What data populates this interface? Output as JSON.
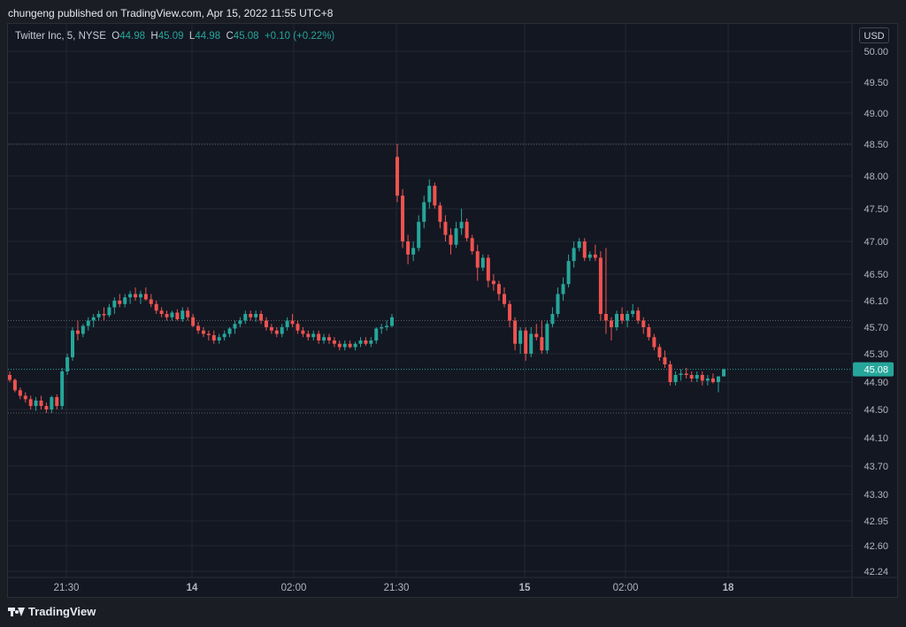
{
  "publish_line": "chungeng published on TradingView.com, Apr 15, 2022 11:55 UTC+8",
  "legend": {
    "symbol": "Twitter Inc, 5, NYSE",
    "o_label": "O",
    "o_value": "44.98",
    "h_label": "H",
    "h_value": "45.09",
    "l_label": "L",
    "l_value": "44.98",
    "c_label": "C",
    "c_value": "45.08",
    "change": "+0.10 (+0.22%)"
  },
  "currency_button": "USD",
  "footer_brand": "TradingView",
  "colors": {
    "up": "#26a69a",
    "down": "#ef5350",
    "background": "#131722",
    "grid": "#232733",
    "price_tag": "#26a69a"
  },
  "chart_data": {
    "type": "candlestick",
    "ylim": [
      42.24,
      50.0
    ],
    "y_ticks": [
      "50.00",
      "49.50",
      "49.00",
      "48.50",
      "48.00",
      "47.50",
      "47.00",
      "46.50",
      "46.10",
      "45.70",
      "45.30",
      "44.90",
      "44.50",
      "44.10",
      "43.70",
      "43.30",
      "42.95",
      "42.60",
      "42.24"
    ],
    "x_ticks": [
      "21:30",
      "14",
      "02:00",
      "21:30",
      "15",
      "02:00",
      "18"
    ],
    "last_price": "45.08",
    "dotted_levels": [
      48.5,
      45.8,
      45.08,
      44.45
    ],
    "candles": [
      [
        45.0,
        45.05,
        44.9,
        44.93
      ],
      [
        44.93,
        44.95,
        44.75,
        44.78
      ],
      [
        44.78,
        44.82,
        44.65,
        44.7
      ],
      [
        44.7,
        44.75,
        44.6,
        44.65
      ],
      [
        44.65,
        44.7,
        44.5,
        44.55
      ],
      [
        44.55,
        44.68,
        44.48,
        44.63
      ],
      [
        44.63,
        44.7,
        44.5,
        44.55
      ],
      [
        44.55,
        44.6,
        44.45,
        44.5
      ],
      [
        44.5,
        44.7,
        44.45,
        44.68
      ],
      [
        44.68,
        44.72,
        44.5,
        44.55
      ],
      [
        44.55,
        45.1,
        44.5,
        45.05
      ],
      [
        45.05,
        45.3,
        45.0,
        45.25
      ],
      [
        45.25,
        45.7,
        45.2,
        45.65
      ],
      [
        45.65,
        45.8,
        45.5,
        45.6
      ],
      [
        45.6,
        45.75,
        45.55,
        45.72
      ],
      [
        45.72,
        45.85,
        45.65,
        45.8
      ],
      [
        45.8,
        45.9,
        45.7,
        45.85
      ],
      [
        45.85,
        45.95,
        45.8,
        45.9
      ],
      [
        45.9,
        46.0,
        45.8,
        45.88
      ],
      [
        45.88,
        46.05,
        45.85,
        46.0
      ],
      [
        46.0,
        46.15,
        45.9,
        46.1
      ],
      [
        46.1,
        46.2,
        46.0,
        46.05
      ],
      [
        46.05,
        46.2,
        46.0,
        46.15
      ],
      [
        46.15,
        46.25,
        46.05,
        46.2
      ],
      [
        46.2,
        46.3,
        46.1,
        46.15
      ],
      [
        46.15,
        46.25,
        46.05,
        46.2
      ],
      [
        46.2,
        46.3,
        46.1,
        46.12
      ],
      [
        46.12,
        46.2,
        46.0,
        46.05
      ],
      [
        46.05,
        46.1,
        45.9,
        45.95
      ],
      [
        45.95,
        46.0,
        45.85,
        45.9
      ],
      [
        45.9,
        45.95,
        45.8,
        45.85
      ],
      [
        45.85,
        45.95,
        45.8,
        45.92
      ],
      [
        45.92,
        45.97,
        45.8,
        45.82
      ],
      [
        45.82,
        46.0,
        45.78,
        45.95
      ],
      [
        45.95,
        46.0,
        45.8,
        45.85
      ],
      [
        45.85,
        45.9,
        45.7,
        45.72
      ],
      [
        45.72,
        45.78,
        45.6,
        45.65
      ],
      [
        45.65,
        45.7,
        45.55,
        45.6
      ],
      [
        45.6,
        45.65,
        45.5,
        45.58
      ],
      [
        45.58,
        45.65,
        45.45,
        45.5
      ],
      [
        45.5,
        45.6,
        45.45,
        45.55
      ],
      [
        45.55,
        45.65,
        45.5,
        45.6
      ],
      [
        45.6,
        45.7,
        45.55,
        45.68
      ],
      [
        45.68,
        45.8,
        45.6,
        45.75
      ],
      [
        45.75,
        45.85,
        45.7,
        45.8
      ],
      [
        45.8,
        45.95,
        45.75,
        45.9
      ],
      [
        45.9,
        45.95,
        45.8,
        45.85
      ],
      [
        45.85,
        45.95,
        45.78,
        45.9
      ],
      [
        45.9,
        45.95,
        45.75,
        45.8
      ],
      [
        45.8,
        45.85,
        45.65,
        45.7
      ],
      [
        45.7,
        45.75,
        45.6,
        45.65
      ],
      [
        45.65,
        45.7,
        45.55,
        45.6
      ],
      [
        45.6,
        45.75,
        45.55,
        45.7
      ],
      [
        45.7,
        45.85,
        45.65,
        45.8
      ],
      [
        45.8,
        45.9,
        45.7,
        45.75
      ],
      [
        45.75,
        45.8,
        45.6,
        45.65
      ],
      [
        45.65,
        45.7,
        45.55,
        45.6
      ],
      [
        45.6,
        45.65,
        45.5,
        45.55
      ],
      [
        45.55,
        45.65,
        45.5,
        45.6
      ],
      [
        45.6,
        45.65,
        45.45,
        45.5
      ],
      [
        45.5,
        45.6,
        45.45,
        45.55
      ],
      [
        45.55,
        45.6,
        45.45,
        45.5
      ],
      [
        45.5,
        45.55,
        45.4,
        45.45
      ],
      [
        45.45,
        45.5,
        45.35,
        45.4
      ],
      [
        45.4,
        45.5,
        45.35,
        45.45
      ],
      [
        45.45,
        45.5,
        45.38,
        45.4
      ],
      [
        45.4,
        45.48,
        45.35,
        45.45
      ],
      [
        45.45,
        45.55,
        45.4,
        45.5
      ],
      [
        45.5,
        45.55,
        45.42,
        45.45
      ],
      [
        45.45,
        45.55,
        45.4,
        45.5
      ],
      [
        45.5,
        45.7,
        45.45,
        45.68
      ],
      [
        45.68,
        45.75,
        45.6,
        45.7
      ],
      [
        45.7,
        45.8,
        45.65,
        45.72
      ],
      [
        45.72,
        45.9,
        45.7,
        45.85
      ],
      [
        48.3,
        48.5,
        47.6,
        47.7
      ],
      [
        47.7,
        47.8,
        46.9,
        47.0
      ],
      [
        47.0,
        47.1,
        46.65,
        46.8
      ],
      [
        46.8,
        47.0,
        46.7,
        46.9
      ],
      [
        46.9,
        47.4,
        46.85,
        47.3
      ],
      [
        47.3,
        47.7,
        47.2,
        47.6
      ],
      [
        47.6,
        47.95,
        47.5,
        47.85
      ],
      [
        47.85,
        47.9,
        47.5,
        47.55
      ],
      [
        47.55,
        47.6,
        47.2,
        47.3
      ],
      [
        47.3,
        47.4,
        47.0,
        47.1
      ],
      [
        47.1,
        47.2,
        46.8,
        46.95
      ],
      [
        46.95,
        47.3,
        46.9,
        47.2
      ],
      [
        47.2,
        47.5,
        47.1,
        47.3
      ],
      [
        47.3,
        47.35,
        47.0,
        47.05
      ],
      [
        47.05,
        47.1,
        46.8,
        46.85
      ],
      [
        46.85,
        46.95,
        46.4,
        46.6
      ],
      [
        46.6,
        46.8,
        46.55,
        46.75
      ],
      [
        46.75,
        46.8,
        46.3,
        46.4
      ],
      [
        46.4,
        46.5,
        46.25,
        46.35
      ],
      [
        46.35,
        46.4,
        46.1,
        46.2
      ],
      [
        46.2,
        46.3,
        46.0,
        46.05
      ],
      [
        46.05,
        46.1,
        45.7,
        45.8
      ],
      [
        45.8,
        45.85,
        45.35,
        45.45
      ],
      [
        45.45,
        45.7,
        45.3,
        45.65
      ],
      [
        45.65,
        45.7,
        45.2,
        45.3
      ],
      [
        45.3,
        45.7,
        45.25,
        45.6
      ],
      [
        45.6,
        45.75,
        45.5,
        45.55
      ],
      [
        45.55,
        45.8,
        45.3,
        45.35
      ],
      [
        45.35,
        45.8,
        45.3,
        45.75
      ],
      [
        45.75,
        46.0,
        45.7,
        45.9
      ],
      [
        45.9,
        46.3,
        45.85,
        46.2
      ],
      [
        46.2,
        46.45,
        46.1,
        46.35
      ],
      [
        46.35,
        46.8,
        46.3,
        46.7
      ],
      [
        46.7,
        47.0,
        46.6,
        46.9
      ],
      [
        46.9,
        47.05,
        46.85,
        47.0
      ],
      [
        47.0,
        47.05,
        46.7,
        46.75
      ],
      [
        46.75,
        46.85,
        46.7,
        46.8
      ],
      [
        46.8,
        46.95,
        46.7,
        46.75
      ],
      [
        46.75,
        46.85,
        45.8,
        45.9
      ],
      [
        45.9,
        46.9,
        45.6,
        45.8
      ],
      [
        45.8,
        45.85,
        45.5,
        45.7
      ],
      [
        45.7,
        45.95,
        45.65,
        45.9
      ],
      [
        45.9,
        46.0,
        45.75,
        45.8
      ],
      [
        45.8,
        45.95,
        45.7,
        45.9
      ],
      [
        45.9,
        46.05,
        45.85,
        45.95
      ],
      [
        45.95,
        46.0,
        45.75,
        45.8
      ],
      [
        45.8,
        45.85,
        45.6,
        45.7
      ],
      [
        45.7,
        45.75,
        45.5,
        45.55
      ],
      [
        45.55,
        45.6,
        45.35,
        45.4
      ],
      [
        45.4,
        45.45,
        45.2,
        45.25
      ],
      [
        45.25,
        45.35,
        45.1,
        45.15
      ],
      [
        45.15,
        45.2,
        44.85,
        44.9
      ],
      [
        44.9,
        45.05,
        44.85,
        45.0
      ],
      [
        45.0,
        45.08,
        44.92,
        45.02
      ],
      [
        45.02,
        45.1,
        44.95,
        45.0
      ],
      [
        45.0,
        45.05,
        44.9,
        44.95
      ],
      [
        44.95,
        45.05,
        44.9,
        45.0
      ],
      [
        45.0,
        45.05,
        44.85,
        44.92
      ],
      [
        44.92,
        45.0,
        44.85,
        44.95
      ],
      [
        44.95,
        45.02,
        44.88,
        44.9
      ],
      [
        44.9,
        44.98,
        44.75,
        44.98
      ],
      [
        44.98,
        45.09,
        44.98,
        45.08
      ]
    ]
  }
}
